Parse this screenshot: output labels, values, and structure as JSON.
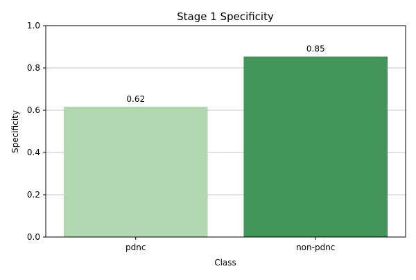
{
  "chart_data": {
    "type": "bar",
    "title": "Stage 1 Specificity",
    "xlabel": "Class",
    "ylabel": "Specificity",
    "categories": [
      "pdnc",
      "non-pdnc"
    ],
    "values": [
      0.617,
      0.854
    ],
    "data_labels": [
      "0.62",
      "0.85"
    ],
    "bar_colors": [
      "#b3d7b0",
      "#44955c"
    ],
    "ylim": [
      0,
      1.0
    ],
    "yticks": [
      0.0,
      0.2,
      0.4,
      0.6,
      0.8,
      1.0
    ],
    "ytick_labels": [
      "0.0",
      "0.2",
      "0.4",
      "0.6",
      "0.8",
      "1.0"
    ],
    "grid": "y",
    "legend": "none"
  }
}
